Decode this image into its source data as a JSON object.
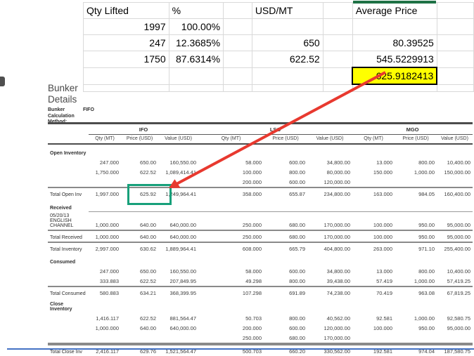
{
  "top_sheet": {
    "columns": [
      "Qty Lifted",
      "%",
      "",
      "USD/MT",
      "",
      "Average Price",
      ""
    ],
    "rows": [
      [
        "1997",
        "100.00%",
        "",
        "",
        "",
        "",
        ""
      ],
      [
        "247",
        "12.3685%",
        "",
        "650",
        "",
        "80.39525",
        ""
      ],
      [
        "1750",
        "87.6314%",
        "",
        "622.52",
        "",
        "545.5229913",
        ""
      ],
      [
        "",
        "",
        "",
        "",
        "",
        "625.9182413",
        ""
      ]
    ],
    "highlight_cell": {
      "row": 3,
      "col": 5,
      "value": "625.9182413"
    }
  },
  "bunker": {
    "title": "Bunker\nDetails",
    "method_label": "Bunker Calculation\nMethod:",
    "method_value": "FIFO",
    "groups": [
      "IFO",
      "LSG",
      "MGO"
    ],
    "col_headers": [
      "Qty (MT)",
      "Price (USD)",
      "Value (USD)"
    ],
    "rows": [
      {
        "type": "section",
        "label": "Open Inventory",
        "cells": [
          "",
          "",
          "",
          "",
          "",
          "",
          "",
          "",
          ""
        ]
      },
      {
        "type": "data",
        "label": "",
        "cells": [
          "247.000",
          "650.00",
          "160,550.00",
          "58.000",
          "600.00",
          "34,800.00",
          "13.000",
          "800.00",
          "10,400.00"
        ]
      },
      {
        "type": "data",
        "label": "",
        "cells": [
          "1,750.000",
          "622.52",
          "1,089,414.41",
          "100.000",
          "800.00",
          "80,000.00",
          "150.000",
          "1,000.00",
          "150,000.00"
        ]
      },
      {
        "type": "data",
        "label": "",
        "cells": [
          "",
          "",
          "",
          "200.000",
          "600.00",
          "120,000.00",
          "",
          "",
          ""
        ]
      },
      {
        "type": "total",
        "label": "Total Open Inv",
        "cells": [
          "1,997.000",
          "625.92",
          "1,249,964.41",
          "358.000",
          "655.87",
          "234,800.00",
          "163.000",
          "984.05",
          "160,400.00"
        ]
      },
      {
        "type": "section",
        "label": "Received",
        "cells": [
          "",
          "",
          "",
          "",
          "",
          "",
          "",
          "",
          ""
        ]
      },
      {
        "type": "data-lined",
        "label": "05/20/13 ENGLISH\nCHANNEL",
        "cells": [
          "1,000.000",
          "640.00",
          "640,000.00",
          "250.000",
          "680.00",
          "170,000.00",
          "100.000",
          "950.00",
          "95,000.00"
        ]
      },
      {
        "type": "total",
        "label": "Total Received",
        "cells": [
          "1,000.000",
          "640.00",
          "640,000.00",
          "250.000",
          "680.00",
          "170,000.00",
          "100.000",
          "950.00",
          "95,000.00"
        ]
      },
      {
        "type": "total",
        "label": "Total Inventory",
        "cells": [
          "2,997.000",
          "630.62",
          "1,889,964.41",
          "608.000",
          "665.79",
          "404,800.00",
          "263.000",
          "971.10",
          "255,400.00"
        ]
      },
      {
        "type": "section",
        "label": "Consumed",
        "cells": [
          "",
          "",
          "",
          "",
          "",
          "",
          "",
          "",
          ""
        ]
      },
      {
        "type": "data",
        "label": "",
        "cells": [
          "247.000",
          "650.00",
          "160,550.00",
          "58.000",
          "600.00",
          "34,800.00",
          "13.000",
          "800.00",
          "10,400.00"
        ]
      },
      {
        "type": "data",
        "label": "",
        "cells": [
          "333.883",
          "622.52",
          "207,849.95",
          "49.298",
          "800.00",
          "39,438.00",
          "57.419",
          "1,000.00",
          "57,419.25"
        ]
      },
      {
        "type": "total",
        "label": "Total Consumed",
        "cells": [
          "580.883",
          "634.21",
          "368,399.95",
          "107.298",
          "691.89",
          "74,238.00",
          "70.419",
          "963.08",
          "67,819.25"
        ]
      },
      {
        "type": "section",
        "label": "Close Inventory",
        "cells": [
          "",
          "",
          "",
          "",
          "",
          "",
          "",
          "",
          ""
        ]
      },
      {
        "type": "data",
        "label": "",
        "cells": [
          "1,416.117",
          "622.52",
          "881,564.47",
          "50.703",
          "800.00",
          "40,562.00",
          "92.581",
          "1,000.00",
          "92,580.75"
        ]
      },
      {
        "type": "data",
        "label": "",
        "cells": [
          "1,000.000",
          "640.00",
          "640,000.00",
          "200.000",
          "600.00",
          "120,000.00",
          "100.000",
          "950.00",
          "95,000.00"
        ]
      },
      {
        "type": "data",
        "label": "",
        "cells": [
          "",
          "",
          "",
          "250.000",
          "680.00",
          "170,000.00",
          "",
          "",
          ""
        ]
      },
      {
        "type": "total-strong",
        "label": "Total Close Inv",
        "cells": [
          "2,416.117",
          "629.76",
          "1,521,564.47",
          "500.703",
          "660.20",
          "330,562.00",
          "192.581",
          "974.04",
          "187,580.75"
        ]
      }
    ],
    "highlighted_total": "625.92"
  },
  "colors": {
    "highlight_yellow": "#ffff00",
    "selection_green": "#1e7145",
    "box_green": "#17a07a",
    "arrow_red": "#e8392f",
    "bottom_blue_line": "#4472c4"
  }
}
